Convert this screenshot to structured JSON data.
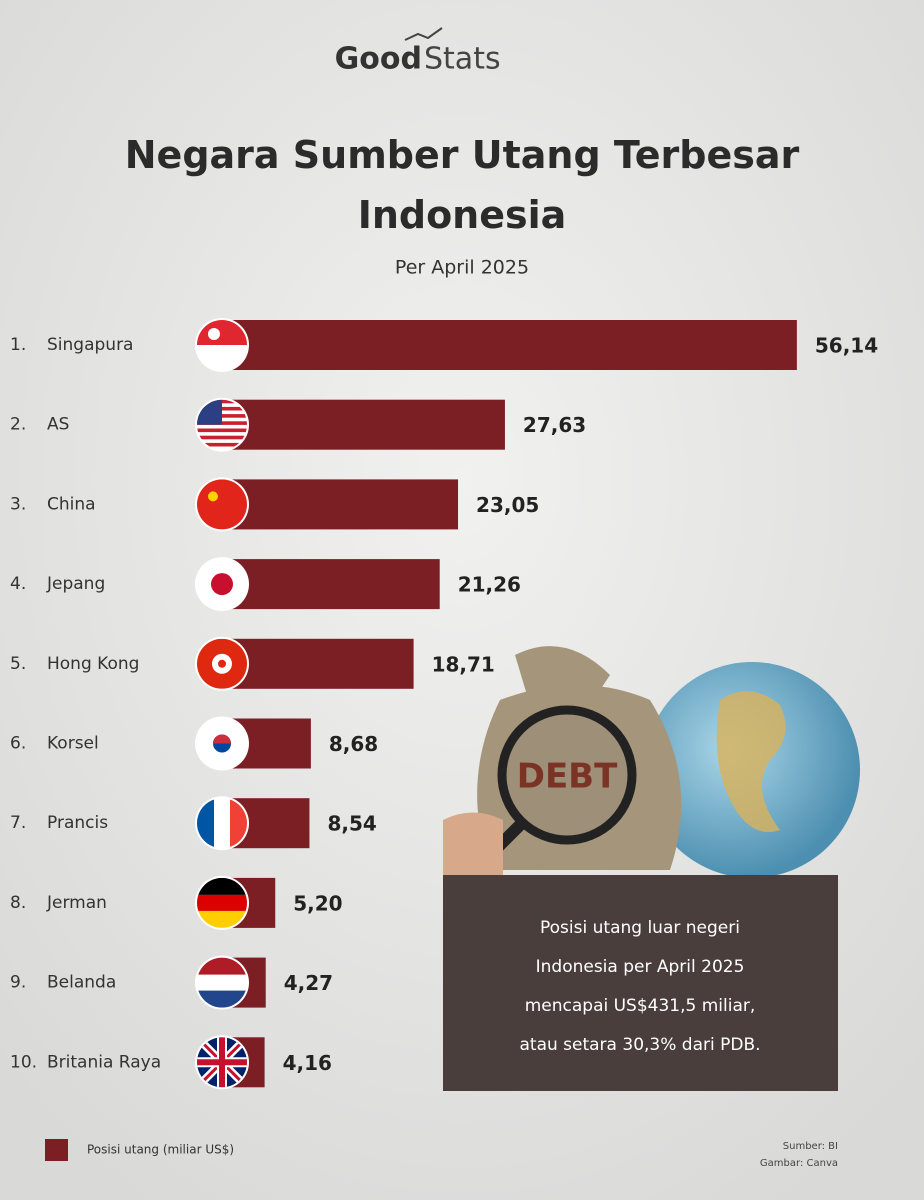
{
  "chart_data": {
    "type": "bar",
    "orientation": "horizontal",
    "title": "Negara Sumber Utang Terbesar Indonesia",
    "subtitle": "Per April 2025",
    "ranks": [
      "1.",
      "2.",
      "3.",
      "4.",
      "5.",
      "6.",
      "7.",
      "8.",
      "9.",
      "10."
    ],
    "categories": [
      "Singapura",
      "AS",
      "China",
      "Jepang",
      "Hong Kong",
      "Korsel",
      "Prancis",
      "Jerman",
      "Belanda",
      "Britania Raya"
    ],
    "series": [
      {
        "name": "Posisi utang (miliar US$)",
        "color": "#7b1f25",
        "values": [
          56.14,
          27.63,
          23.05,
          21.26,
          18.71,
          8.68,
          8.54,
          5.2,
          4.27,
          4.16
        ],
        "value_labels": [
          "56,14",
          "27,63",
          "23,05",
          "21,26",
          "18,71",
          "8,68",
          "8,54",
          "5,20",
          "4,27",
          "4,16"
        ]
      }
    ]
  },
  "logo": {
    "bold": "Good",
    "light": "Stats"
  },
  "annotation": {
    "image_text": "DEBT",
    "lines": [
      "Posisi utang luar negeri",
      "Indonesia per April 2025",
      "mencapai US$431,5 miliar,",
      "atau setara 30,3% dari PDB."
    ]
  },
  "source": [
    "Sumber: BI",
    "Gambar: Canva"
  ]
}
